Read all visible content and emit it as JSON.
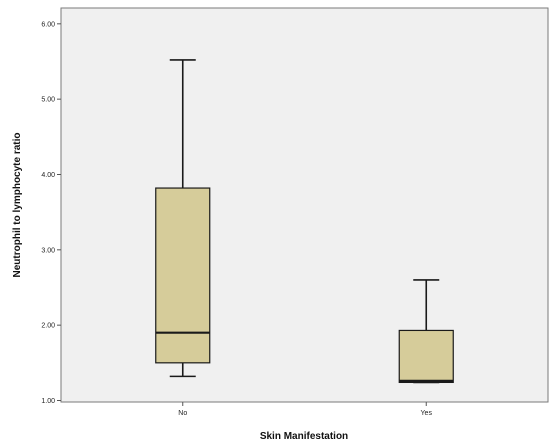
{
  "chart_data": {
    "type": "boxplot",
    "title": "",
    "xlabel": "Skin Manifestation",
    "ylabel": "Neutrophil to lymphocyte ratio",
    "categories": [
      "No",
      "Yes"
    ],
    "boxes": [
      {
        "category": "No",
        "min": 1.32,
        "q1": 1.5,
        "median": 1.9,
        "q3": 3.82,
        "max": 5.52
      },
      {
        "category": "Yes",
        "min": 1.24,
        "q1": 1.24,
        "median": 1.26,
        "q3": 1.93,
        "max": 2.6
      }
    ],
    "y_ticks": [
      "1.00",
      "2.00",
      "3.00",
      "4.00",
      "5.00",
      "6.00"
    ],
    "ylim": [
      0.98,
      6.21
    ],
    "grid": false,
    "colors": {
      "plot_background": "#f0f0f0",
      "box_fill": "#d6cc9a",
      "box_stroke": "#1a1a1a",
      "frame": "#7a7a7a"
    }
  }
}
